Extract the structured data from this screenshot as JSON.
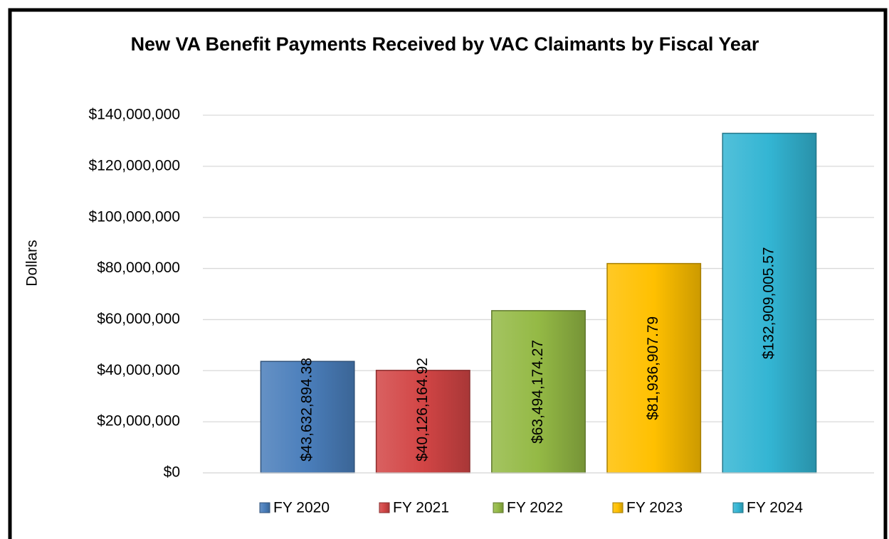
{
  "chart_data": {
    "type": "bar",
    "title": "New VA Benefit Payments Received by VAC Claimants by Fiscal Year",
    "y_label": "Dollars",
    "categories": [
      null
    ],
    "series": [
      {
        "name": "FY 2020",
        "color": "#4a7ebb",
        "values": [
          43632894.38
        ],
        "value_labels": [
          "$43,632,894.38"
        ]
      },
      {
        "name": "FY 2021",
        "color": "#d24545",
        "values": [
          40126164.92
        ],
        "value_labels": [
          "$40,126,164.92"
        ]
      },
      {
        "name": "FY 2022",
        "color": "#94b945",
        "values": [
          63494174.27
        ],
        "value_labels": [
          "$63,494,174.27"
        ]
      },
      {
        "name": "FY 2023",
        "color": "#ffc000",
        "values": [
          81936907.79
        ],
        "value_labels": [
          "$81,936,907.79"
        ]
      },
      {
        "name": "FY 2024",
        "color": "#33b5d3",
        "values": [
          132909005.57
        ],
        "value_labels": [
          "$132,909,005.57"
        ]
      }
    ],
    "ylim": [
      0,
      140000000
    ],
    "yticks": [
      {
        "value": 0,
        "label": "$0"
      },
      {
        "value": 20000000,
        "label": "$20,000,000"
      },
      {
        "value": 40000000,
        "label": "$40,000,000"
      },
      {
        "value": 60000000,
        "label": "$60,000,000"
      },
      {
        "value": 80000000,
        "label": "$80,000,000"
      },
      {
        "value": 100000000,
        "label": "$100,000,000"
      },
      {
        "value": 120000000,
        "label": "$120,000,000"
      },
      {
        "value": 140000000,
        "label": "$140,000,000"
      }
    ],
    "grid": true,
    "legend": "bottom"
  }
}
